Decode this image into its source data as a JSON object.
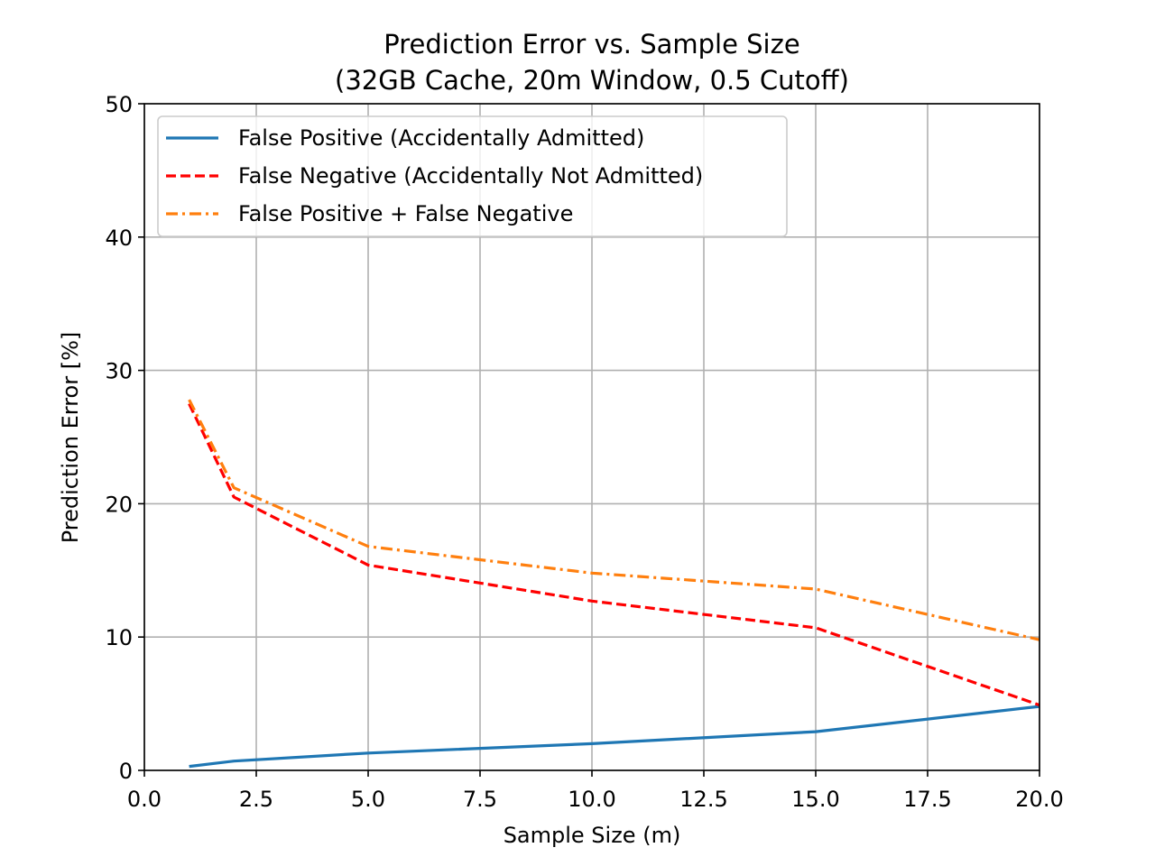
{
  "chart_data": {
    "type": "line",
    "title_line1": "Prediction Error vs. Sample Size",
    "title_line2": "(32GB Cache, 20m Window, 0.5 Cutoff)",
    "xlabel": "Sample Size (m)",
    "ylabel": "Prediction Error [%]",
    "xlim": [
      0,
      20
    ],
    "ylim": [
      0,
      50
    ],
    "xticks": [
      0,
      2.5,
      5,
      7.5,
      10,
      12.5,
      15,
      17.5,
      20
    ],
    "xtick_labels": [
      "0.0",
      "2.5",
      "5.0",
      "7.5",
      "10.0",
      "12.5",
      "15.0",
      "17.5",
      "20.0"
    ],
    "yticks": [
      0,
      10,
      20,
      30,
      40,
      50
    ],
    "ytick_labels": [
      "0",
      "10",
      "20",
      "30",
      "40",
      "50"
    ],
    "grid": true,
    "legend_position": "top-left",
    "x": [
      1,
      2,
      5,
      10,
      15,
      20
    ],
    "series": [
      {
        "name": "False Positive (Accidentally Admitted)",
        "values": [
          0.3,
          0.7,
          1.3,
          2.0,
          2.9,
          4.8
        ],
        "color": "#1f77b4",
        "dash": "solid"
      },
      {
        "name": "False Negative (Accidentally Not Admitted)",
        "values": [
          27.5,
          20.5,
          15.4,
          12.7,
          10.7,
          4.9
        ],
        "color": "#ff0000",
        "dash": "dashed"
      },
      {
        "name": "False Positive + False Negative",
        "values": [
          27.8,
          21.2,
          16.8,
          14.8,
          13.6,
          9.8
        ],
        "color": "#ff7f0e",
        "dash": "dashdot"
      }
    ]
  }
}
